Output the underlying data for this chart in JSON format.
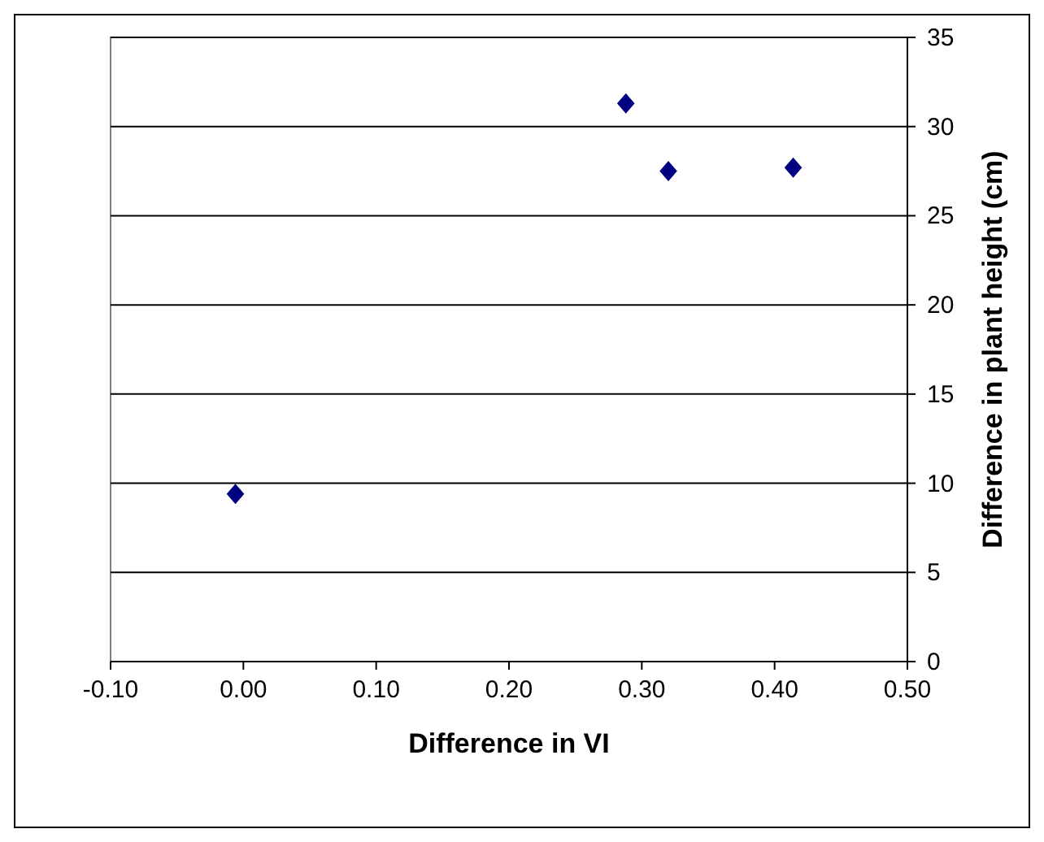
{
  "chart_data": {
    "type": "scatter",
    "xlabel": "Difference in VI",
    "y2label": "Difference in plant height (cm)",
    "x": [
      -0.006,
      0.288,
      0.32,
      0.414
    ],
    "series": [
      {
        "color": "#000080",
        "values": [
          9.4,
          31.3,
          27.5,
          27.7
        ],
        "axis": "y2"
      }
    ],
    "xlim": [
      -0.1,
      0.5
    ],
    "xticks": [
      {
        "value": -0.1,
        "label": "-0.10"
      },
      {
        "value": 0,
        "label": "0.00"
      },
      {
        "value": 0.1,
        "label": "0.10"
      },
      {
        "value": 0.2,
        "label": "0.20"
      },
      {
        "value": 0.3,
        "label": "0.30"
      },
      {
        "value": 0.4,
        "label": "0.40"
      },
      {
        "value": 0.5,
        "label": "0.50"
      }
    ],
    "y2lim": [
      0,
      35
    ],
    "y2ticks": [
      0,
      5,
      10,
      15,
      20,
      25,
      30,
      35
    ],
    "grid": "y",
    "marker": "diamond"
  }
}
